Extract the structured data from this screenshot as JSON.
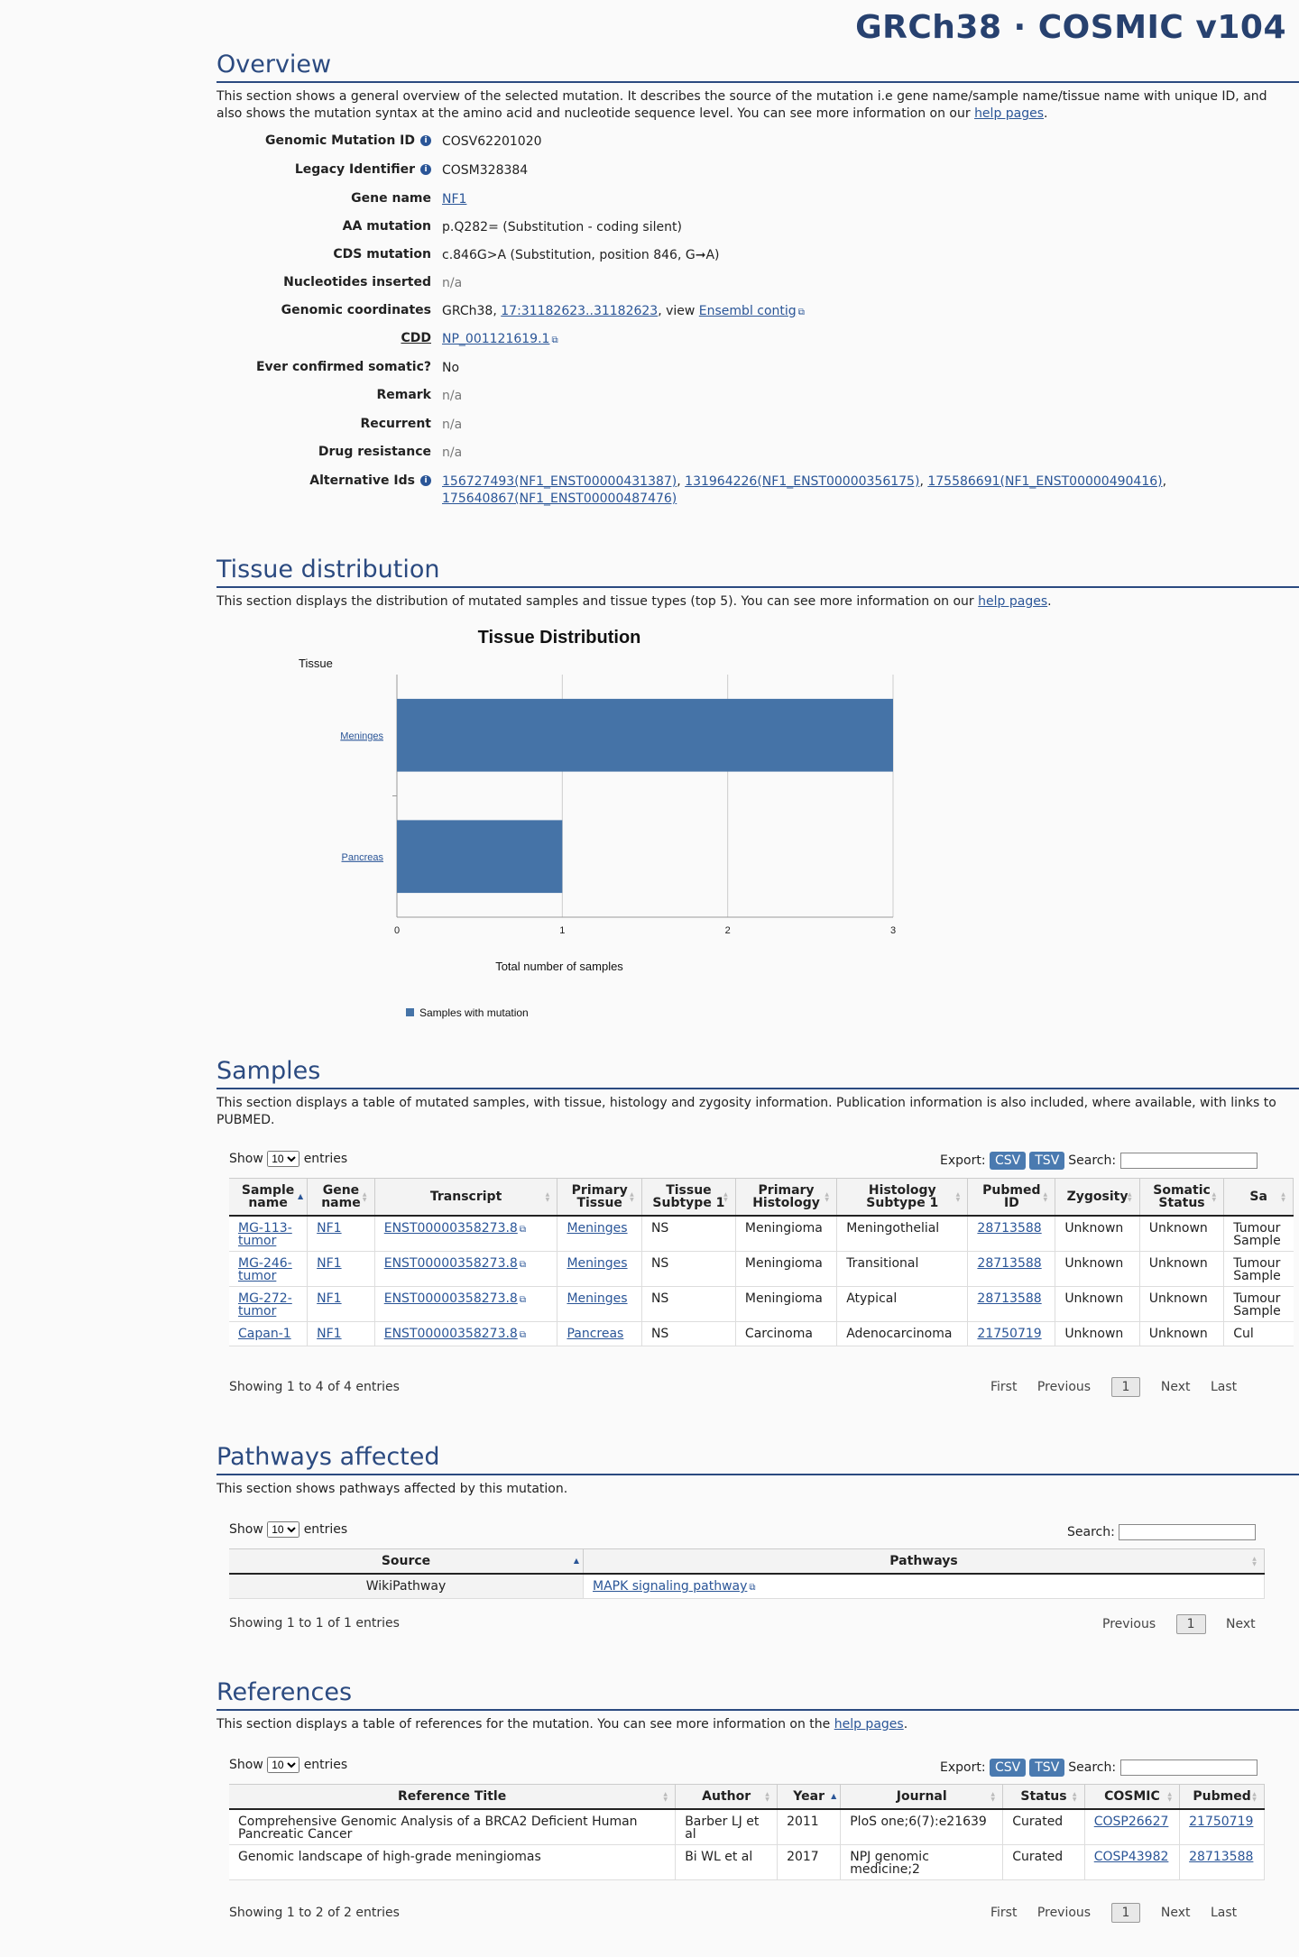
{
  "header": {
    "site_title": "GRCh38 · COSMIC v104"
  },
  "overview": {
    "heading": "Overview",
    "desc_text": "This section shows a general overview of the selected mutation. It describes the source of the mutation i.e gene name/sample name/tissue name with unique ID, and also shows the mutation syntax at the amino acid and nucleotide sequence level. You can see more information on our ",
    "help_link": "help pages",
    "fields": {
      "genomic_mutation_id": {
        "label": "Genomic Mutation ID",
        "value": "COSV62201020"
      },
      "legacy_identifier": {
        "label": "Legacy Identifier",
        "value": "COSM328384"
      },
      "gene_name": {
        "label": "Gene name",
        "value": "NF1"
      },
      "aa_mutation": {
        "label": "AA mutation",
        "value": "p.Q282= (Substitution - coding silent)"
      },
      "cds_mutation": {
        "label": "CDS mutation",
        "value": "c.846G>A (Substitution, position 846, G➞A)"
      },
      "nucleotides_inserted": {
        "label": "Nucleotides inserted",
        "value": "n/a"
      },
      "genomic_coordinates": {
        "label": "Genomic coordinates",
        "prefix": "GRCh38, ",
        "coords": "17:31182623..31182623",
        "mid": ", view ",
        "link": "Ensembl contig"
      },
      "cdd": {
        "label": "CDD",
        "value": "NP_001121619.1"
      },
      "ever_confirmed": {
        "label": "Ever confirmed somatic?",
        "value": "No"
      },
      "remark": {
        "label": "Remark",
        "value": "n/a"
      },
      "recurrent": {
        "label": "Recurrent",
        "value": "n/a"
      },
      "drug_resistance": {
        "label": "Drug resistance",
        "value": "n/a"
      },
      "alternative_ids": {
        "label": "Alternative Ids",
        "ids": [
          "156727493(NF1_ENST00000431387)",
          "131964226(NF1_ENST00000356175)",
          "175586691(NF1_ENST00000490416)",
          "175640867(NF1_ENST00000487476)"
        ]
      }
    }
  },
  "tissue": {
    "heading": "Tissue distribution",
    "desc_text": "This section displays the distribution of mutated samples and tissue types (top 5). You can see more information on our ",
    "help_link": "help pages"
  },
  "chart_data": {
    "type": "bar",
    "orientation": "horizontal",
    "title": "Tissue Distribution",
    "ylabel": "Tissue",
    "xlabel": "Total number of samples",
    "categories": [
      "Meninges",
      "Pancreas"
    ],
    "series": [
      {
        "name": "Samples with mutation",
        "values": [
          3,
          1
        ]
      }
    ],
    "xlim": [
      0,
      3
    ],
    "xticks": [
      "0",
      "1",
      "2",
      "3"
    ],
    "grid": true,
    "legend": "bottom-left",
    "color": "#4573a7"
  },
  "samples": {
    "heading": "Samples",
    "desc_text": "This section displays a table of mutated samples, with tissue, histology and zygosity information. Publication information is also included, where available, with links to PUBMED.",
    "show": "Show",
    "entries": "entries",
    "length": "10",
    "export": "Export:",
    "csv": "CSV",
    "tsv": "TSV",
    "search": "Search:",
    "columns": [
      "Sample name",
      "Gene name",
      "Transcript",
      "Primary Tissue",
      "Tissue Subtype 1",
      "Primary Histology",
      "Histology Subtype 1",
      "Pubmed ID",
      "Zygosity",
      "Somatic Status",
      "Sa"
    ],
    "rows": [
      [
        "MG-113-tumor",
        "NF1",
        "ENST00000358273.8",
        "Meninges",
        "NS",
        "Meningioma",
        "Meningothelial",
        "28713588",
        "Unknown",
        "Unknown",
        "Tumour Sample"
      ],
      [
        "MG-246-tumor",
        "NF1",
        "ENST00000358273.8",
        "Meninges",
        "NS",
        "Meningioma",
        "Transitional",
        "28713588",
        "Unknown",
        "Unknown",
        "Tumour Sample"
      ],
      [
        "MG-272-tumor",
        "NF1",
        "ENST00000358273.8",
        "Meninges",
        "NS",
        "Meningioma",
        "Atypical",
        "28713588",
        "Unknown",
        "Unknown",
        "Tumour Sample"
      ],
      [
        "Capan-1",
        "NF1",
        "ENST00000358273.8",
        "Pancreas",
        "NS",
        "Carcinoma",
        "Adenocarcinoma",
        "21750719",
        "Unknown",
        "Unknown",
        "Cul"
      ]
    ],
    "info": "Showing 1 to 4 of 4 entries",
    "pager": {
      "first": "First",
      "previous": "Previous",
      "current": "1",
      "next": "Next",
      "last": "Last"
    }
  },
  "pathways": {
    "heading": "Pathways affected",
    "desc_text": "This section shows pathways affected by this mutation.",
    "show": "Show",
    "entries": "entries",
    "length": "10",
    "search": "Search:",
    "columns": [
      "Source",
      "Pathways"
    ],
    "rows": [
      [
        "WikiPathway",
        "MAPK signaling pathway"
      ]
    ],
    "info": "Showing 1 to 1 of 1 entries",
    "pager": {
      "previous": "Previous",
      "current": "1",
      "next": "Next"
    }
  },
  "references": {
    "heading": "References",
    "desc_text": "This section displays a table of references for the mutation. You can see more information on the ",
    "help_link": "help pages",
    "show": "Show",
    "entries": "entries",
    "length": "10",
    "export": "Export:",
    "csv": "CSV",
    "tsv": "TSV",
    "search": "Search:",
    "columns": [
      "Reference Title",
      "Author",
      "Year",
      "Journal",
      "Status",
      "COSMIC",
      "Pubmed"
    ],
    "rows": [
      [
        "Comprehensive Genomic Analysis of a BRCA2 Deficient Human Pancreatic Cancer",
        "Barber LJ et al",
        "2011",
        "PloS one;6(7):e21639",
        "Curated",
        "COSP26627",
        "21750719"
      ],
      [
        "Genomic landscape of high-grade meningiomas",
        "Bi WL et al",
        "2017",
        "NPJ genomic medicine;2",
        "Curated",
        "COSP43982",
        "28713588"
      ]
    ],
    "info": "Showing 1 to 2 of 2 entries",
    "pager": {
      "first": "First",
      "previous": "Previous",
      "current": "1",
      "next": "Next",
      "last": "Last"
    }
  }
}
